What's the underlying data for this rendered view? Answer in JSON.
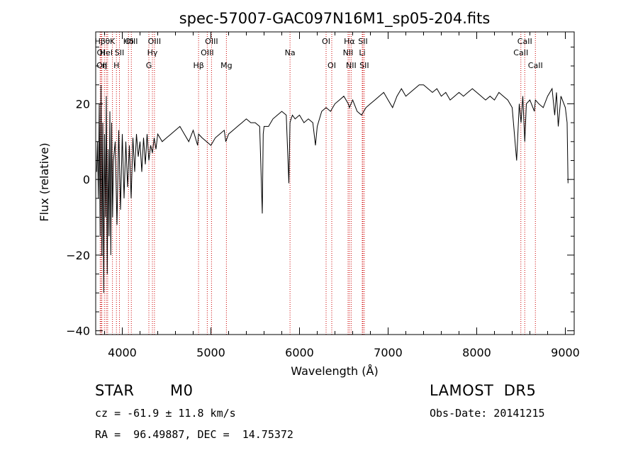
{
  "chart_data": {
    "type": "line",
    "title": "spec-57007-GAC097N16M1_sp05-204.fits",
    "xlabel": "Wavelength (Å)",
    "ylabel": "Flux (relative)",
    "xlim": [
      3700,
      9100
    ],
    "ylim": [
      -41,
      39
    ],
    "xticks": [
      4000,
      5000,
      6000,
      7000,
      8000,
      9000
    ],
    "yticks": [
      -40,
      -20,
      0,
      20
    ],
    "grid": false,
    "series": [
      {
        "color": "#000000",
        "x": [
          3710,
          3720,
          3730,
          3740,
          3750,
          3760,
          3770,
          3780,
          3790,
          3800,
          3810,
          3820,
          3830,
          3840,
          3850,
          3860,
          3870,
          3880,
          3890,
          3900,
          3920,
          3940,
          3960,
          3980,
          4000,
          4020,
          4040,
          4060,
          4080,
          4100,
          4120,
          4140,
          4160,
          4180,
          4200,
          4220,
          4240,
          4260,
          4280,
          4300,
          4320,
          4340,
          4360,
          4380,
          4400,
          4450,
          4500,
          4550,
          4600,
          4650,
          4700,
          4750,
          4800,
          4850,
          4861,
          4900,
          4950,
          5000,
          5050,
          5100,
          5150,
          5168,
          5200,
          5250,
          5300,
          5350,
          5400,
          5450,
          5500,
          5550,
          5580,
          5590,
          5600,
          5650,
          5700,
          5750,
          5800,
          5850,
          5880,
          5893,
          5905,
          5920,
          5950,
          6000,
          6050,
          6100,
          6150,
          6180,
          6200,
          6250,
          6300,
          6350,
          6400,
          6450,
          6500,
          6550,
          6563,
          6600,
          6650,
          6700,
          6750,
          6800,
          6850,
          6900,
          6950,
          7000,
          7050,
          7100,
          7150,
          7200,
          7250,
          7300,
          7350,
          7400,
          7450,
          7500,
          7550,
          7600,
          7650,
          7700,
          7750,
          7800,
          7850,
          7900,
          7950,
          8000,
          8050,
          8100,
          8150,
          8200,
          8250,
          8300,
          8350,
          8400,
          8450,
          8480,
          8500,
          8520,
          8542,
          8560,
          8600,
          8650,
          8662,
          8700,
          8750,
          8800,
          8850,
          8880,
          8900,
          8920,
          8950,
          9000,
          9020,
          9030
        ],
        "y": [
          2,
          10,
          -5,
          20,
          -15,
          25,
          -20,
          15,
          -30,
          12,
          -10,
          22,
          -25,
          8,
          -15,
          18,
          -20,
          15,
          -10,
          5,
          10,
          -12,
          13,
          -8,
          12,
          -5,
          10,
          -2,
          9,
          -5,
          11,
          2,
          12,
          6,
          10,
          2,
          11,
          4,
          12,
          5,
          9,
          7,
          11,
          8,
          12,
          10,
          11,
          12,
          13,
          14,
          12,
          10,
          13,
          9,
          12,
          11,
          10,
          9,
          11,
          12,
          13,
          10,
          12,
          13,
          14,
          15,
          16,
          15,
          15,
          14,
          -9,
          12,
          14,
          14,
          16,
          17,
          18,
          17,
          -1,
          15,
          16,
          17,
          16,
          17,
          15,
          16,
          15,
          9,
          14,
          18,
          19,
          18,
          20,
          21,
          22,
          20,
          19,
          21,
          18,
          17,
          19,
          20,
          21,
          22,
          23,
          21,
          19,
          22,
          24,
          22,
          23,
          24,
          25,
          25,
          24,
          23,
          24,
          22,
          23,
          21,
          22,
          23,
          22,
          23,
          24,
          23,
          22,
          21,
          22,
          21,
          23,
          22,
          21,
          19,
          5,
          20,
          15,
          22,
          10,
          20,
          21,
          18,
          21,
          20,
          19,
          22,
          24,
          17,
          23,
          14,
          22,
          19,
          15,
          -1
        ]
      }
    ],
    "lines": [
      {
        "wavelength": 3750,
        "label": "Hβ",
        "row": 1
      },
      {
        "wavelength": 3760,
        "label": "OI",
        "row": 2
      },
      {
        "wavelength": 3770,
        "label": "OII",
        "row": 3
      },
      {
        "wavelength": 3798,
        "label": "η",
        "row": 3
      },
      {
        "wavelength": 3820,
        "label": "HeI",
        "row": 2
      },
      {
        "wavelength": 3835,
        "label": "θ",
        "row": 1
      },
      {
        "wavelength": 3889,
        "label": "K",
        "row": 1
      },
      {
        "wavelength": 3934,
        "label": "H",
        "row": 3
      },
      {
        "wavelength": 3968,
        "label": "SII",
        "row": 2
      },
      {
        "wavelength": 4070,
        "label": "Hδ",
        "row": 1
      },
      {
        "wavelength": 4102,
        "label": "OIII",
        "row": 1
      },
      {
        "wavelength": 4300,
        "label": "G",
        "row": 3
      },
      {
        "wavelength": 4340,
        "label": "Hγ",
        "row": 2
      },
      {
        "wavelength": 4363,
        "label": "OIII",
        "row": 1
      },
      {
        "wavelength": 4861,
        "label": "Hβ",
        "row": 3
      },
      {
        "wavelength": 4959,
        "label": "OIII",
        "row": 2
      },
      {
        "wavelength": 5007,
        "label": "OIII",
        "row": 1
      },
      {
        "wavelength": 5175,
        "label": "Mg",
        "row": 3
      },
      {
        "wavelength": 5893,
        "label": "Na",
        "row": 2
      },
      {
        "wavelength": 6300,
        "label": "OI",
        "row": 1
      },
      {
        "wavelength": 6364,
        "label": "OI",
        "row": 3
      },
      {
        "wavelength": 6548,
        "label": "NII",
        "row": 2
      },
      {
        "wavelength": 6563,
        "label": "Hα",
        "row": 1
      },
      {
        "wavelength": 6583,
        "label": "NII",
        "row": 3
      },
      {
        "wavelength": 6708,
        "label": "Li",
        "row": 2
      },
      {
        "wavelength": 6716,
        "label": "SII",
        "row": 1
      },
      {
        "wavelength": 6731,
        "label": "SII",
        "row": 3
      },
      {
        "wavelength": 8498,
        "label": "CaII",
        "row": 2
      },
      {
        "wavelength": 8542,
        "label": "CaII",
        "row": 1
      },
      {
        "wavelength": 8662,
        "label": "CaII",
        "row": 3
      }
    ]
  },
  "info": {
    "class": "STAR",
    "subclass": "M0",
    "survey": "LAMOST  DR5",
    "cz": "cz = -61.9 ± 11.8 km/s",
    "obs_date": "Obs-Date: 20141215",
    "radec": "RA =  96.49887, DEC =  14.75372"
  }
}
